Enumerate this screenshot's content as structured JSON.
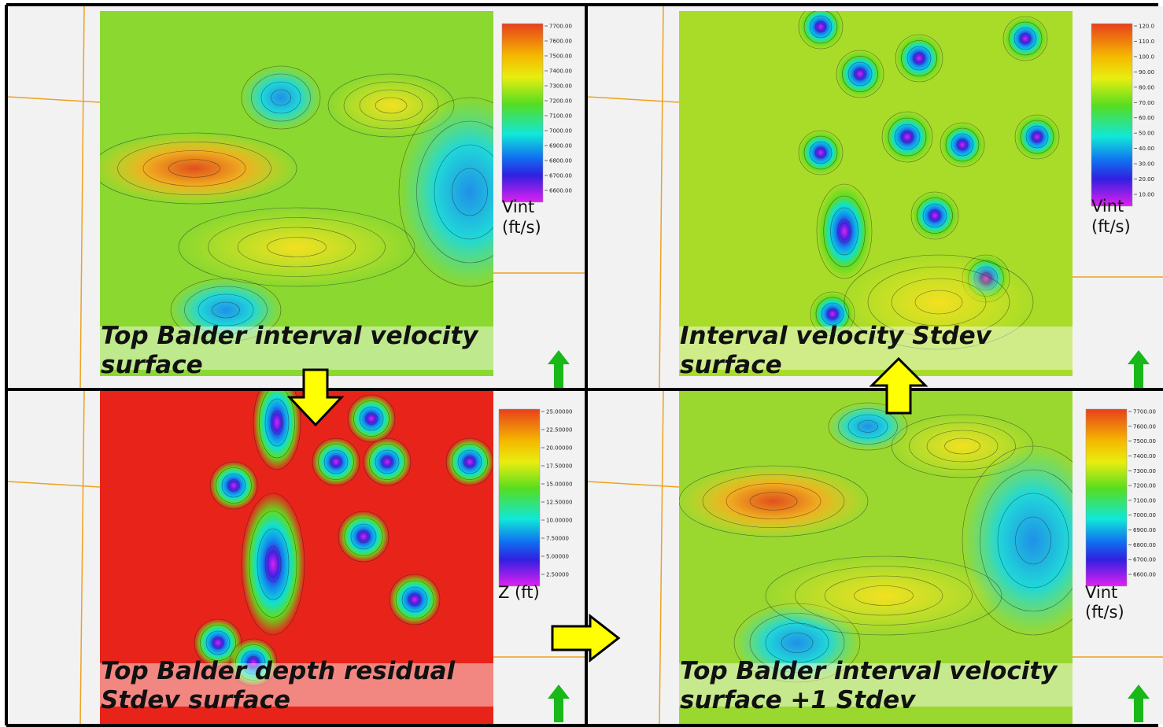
{
  "panels": [
    {
      "title": [
        "Top Balder interval velocity",
        "surface"
      ],
      "colorbar_ticks": [
        "7700.00",
        "7600.00",
        "7500.00",
        "7400.00",
        "7300.00",
        "7200.00",
        "7100.00",
        "7000.00",
        "6900.00",
        "6800.00",
        "6700.00",
        "6600.00"
      ],
      "unit": [
        "Vint",
        "(ft/s)"
      ]
    },
    {
      "title": [
        "Interval velocity Stdev",
        "surface"
      ],
      "colorbar_ticks": [
        "120.0",
        "110.0",
        "100.0",
        "90.00",
        "80.00",
        "70.00",
        "60.00",
        "50.00",
        "40.00",
        "30.00",
        "20.00",
        "10.00"
      ],
      "unit": [
        "Vint",
        "(ft/s)"
      ]
    },
    {
      "title": [
        "Top Balder depth residual",
        "Stdev surface"
      ],
      "colorbar_ticks": [
        "25.00000",
        "22.50000",
        "20.00000",
        "17.50000",
        "15.00000",
        "12.50000",
        "10.00000",
        "7.50000",
        "5.00000",
        "2.50000"
      ],
      "unit": [
        "Z (ft)"
      ]
    },
    {
      "title": [
        "Top Balder interval velocity",
        "surface +1 Stdev"
      ],
      "colorbar_ticks": [
        "7700.00",
        "7600.00",
        "7500.00",
        "7400.00",
        "7300.00",
        "7200.00",
        "7100.00",
        "7000.00",
        "6900.00",
        "6800.00",
        "6700.00",
        "6600.00"
      ],
      "unit": [
        "Vint",
        "(ft/s)"
      ]
    }
  ]
}
